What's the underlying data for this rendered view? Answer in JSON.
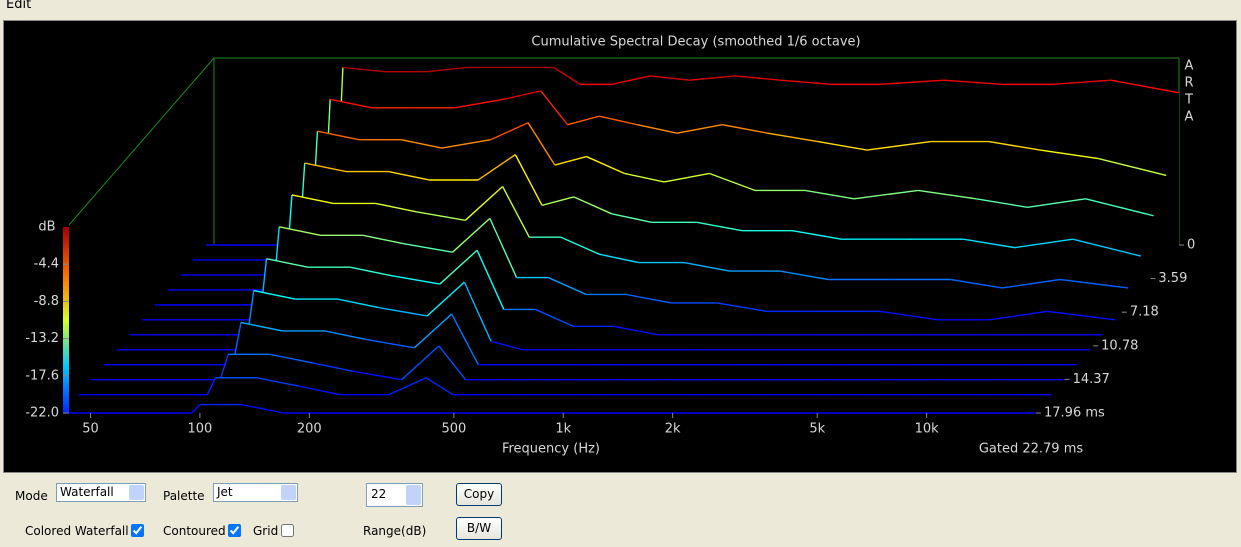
{
  "menu": [
    "Edit"
  ],
  "chart_data": {
    "type": "waterfall",
    "title": "Cumulative Spectral Decay (smoothed 1/6 octave)",
    "x_label": "Frequency (Hz)",
    "note": "Gated 22.79 ms",
    "brand": [
      "A",
      "R",
      "T",
      "A"
    ],
    "y_label": "dB",
    "xscale": "log",
    "xlim": [
      42,
      20000
    ],
    "xticks": [
      50,
      100,
      200,
      500,
      {
        "value": 1000,
        "label": "1k"
      },
      {
        "value": 2000,
        "label": "2k"
      },
      {
        "value": 5000,
        "label": "5k"
      },
      {
        "value": 10000,
        "label": "10k"
      }
    ],
    "ylim": [
      -22,
      0
    ],
    "yticks": [
      -4.4,
      -8.8,
      -13.2,
      -17.6,
      {
        "value": -22,
        "label": "-22.0"
      }
    ],
    "tlim": [
      0,
      17.96
    ],
    "tticks": [
      0,
      3.59,
      7.18,
      10.78,
      14.37,
      {
        "value": 17.96,
        "label": "17.96 ms"
      }
    ],
    "x": [
      42,
      95,
      100,
      130,
      170,
      220,
      300,
      380,
      450,
      550,
      700,
      900,
      1200,
      1600,
      2200,
      3000,
      4500,
      6500,
      9000,
      13000,
      20000
    ],
    "slices": [
      {
        "time": 0,
        "values": [
          -22,
          -22,
          -1,
          -1.5,
          -1.5,
          -1,
          -1,
          -1,
          -3,
          -3,
          -2,
          -2.5,
          -2,
          -2.5,
          -3,
          -3,
          -2.5,
          -3,
          -3,
          -2.5,
          -4
        ]
      },
      {
        "time": 1.6,
        "values": [
          -22,
          -22,
          -3,
          -4,
          -4,
          -4,
          -3,
          -2,
          -6,
          -5,
          -6,
          -7,
          -6,
          -7,
          -8,
          -9,
          -8,
          -8,
          -9,
          -10,
          -12
        ]
      },
      {
        "time": 3.2,
        "values": [
          -22,
          -22,
          -5,
          -6,
          -6,
          -7,
          -6,
          -4,
          -9,
          -8,
          -10,
          -11,
          -10,
          -12,
          -12,
          -13,
          -12,
          -13,
          -14,
          -13,
          -15
        ]
      },
      {
        "time": 4.8,
        "values": [
          -22,
          -22,
          -7,
          -8,
          -8,
          -9,
          -9,
          -6,
          -12,
          -11,
          -13,
          -14,
          -14,
          -15,
          -15,
          -16,
          -16,
          -16,
          -17,
          -16,
          -18
        ]
      },
      {
        "time": 6.4,
        "values": [
          -22,
          -22,
          -9,
          -10,
          -10,
          -11,
          -12,
          -8,
          -14,
          -14,
          -16,
          -17,
          -17,
          -18,
          -18,
          -19,
          -19,
          -19,
          -20,
          -19,
          -20
        ]
      },
      {
        "time": 8,
        "values": [
          -22,
          -22,
          -11,
          -12,
          -12,
          -13,
          -14,
          -10,
          -17,
          -17,
          -19,
          -19,
          -20,
          -20,
          -21,
          -21,
          -21,
          -22,
          -22,
          -21,
          -22
        ]
      },
      {
        "time": 9.6,
        "values": [
          -22,
          -22,
          -13,
          -14,
          -14,
          -15,
          -16,
          -12,
          -19,
          -19,
          -21,
          -21,
          -22,
          -22,
          -22,
          -22,
          -22,
          -22,
          -22,
          -22,
          -22
        ]
      },
      {
        "time": 11.2,
        "values": [
          -22,
          -22,
          -15,
          -16,
          -16,
          -17,
          -18,
          -14,
          -21,
          -22,
          -22,
          -22,
          -22,
          -22,
          -22,
          -22,
          -22,
          -22,
          -22,
          -22,
          -22
        ]
      },
      {
        "time": 12.8,
        "values": [
          -22,
          -22,
          -17,
          -18,
          -18,
          -19,
          -20,
          -16,
          -22,
          -22,
          -22,
          -22,
          -22,
          -22,
          -22,
          -22,
          -22,
          -22,
          -22,
          -22,
          -22
        ]
      },
      {
        "time": 14.4,
        "values": [
          -22,
          -22,
          -19,
          -19,
          -20,
          -21,
          -22,
          -18,
          -22,
          -22,
          -22,
          -22,
          -22,
          -22,
          -22,
          -22,
          -22,
          -22,
          -22,
          -22,
          -22
        ]
      },
      {
        "time": 16,
        "values": [
          -22,
          -22,
          -20,
          -20,
          -21,
          -22,
          -22,
          -20,
          -22,
          -22,
          -22,
          -22,
          -22,
          -22,
          -22,
          -22,
          -22,
          -22,
          -22,
          -22,
          -22
        ]
      },
      {
        "time": 17.96,
        "values": [
          -22,
          -22,
          -21,
          -21,
          -22,
          -22,
          -22,
          -22,
          -22,
          -22,
          -22,
          -22,
          -22,
          -22,
          -22,
          -22,
          -22,
          -22,
          -22,
          -22,
          -22
        ]
      }
    ]
  },
  "controls": {
    "mode_label": "Mode",
    "mode_value": "Waterfall",
    "palette_label": "Palette",
    "palette_value": "Jet",
    "range_value": 22,
    "range_label": "Range(dB)",
    "copy_button": "Copy",
    "bw_button": "B/W",
    "colored_waterfall": {
      "label": "Colored Waterfall",
      "checked": true
    },
    "contoured": {
      "label": "Contoured",
      "checked": true
    },
    "grid": {
      "label": "Grid",
      "checked": false
    }
  }
}
